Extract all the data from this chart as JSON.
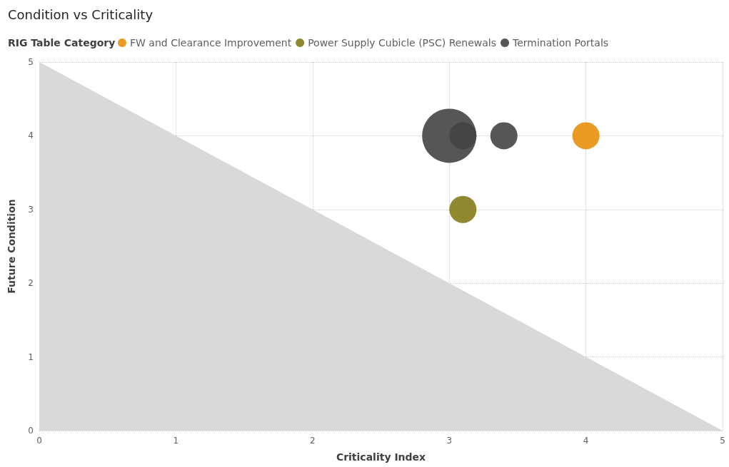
{
  "chart_data": {
    "type": "bubble",
    "title": "Condition vs Criticality",
    "xlabel": "Criticality Index",
    "ylabel": "Future Condition",
    "legend_title": "RIG Table Category",
    "xlim": [
      0,
      5
    ],
    "xticks": [
      0,
      1,
      2,
      3,
      4,
      5
    ],
    "ylim": [
      0,
      5
    ],
    "yticks": [
      0,
      1,
      2,
      3,
      4,
      5
    ],
    "grid": true,
    "legend": "top left",
    "series": [
      {
        "type": "area",
        "color": "#d9d9d9",
        "x": [
          0,
          5
        ],
        "values": [
          5,
          0
        ]
      },
      {
        "name": "FW and Clearance Improvement",
        "color": "#e8900c",
        "x": [
          4
        ],
        "values": [
          4
        ],
        "sizes": [
          0.25
        ]
      },
      {
        "name": "Power Supply Cubicle (PSC) Renewals",
        "color": "#857c1a",
        "x": [
          3.1
        ],
        "values": [
          3
        ],
        "sizes": [
          0.25
        ]
      },
      {
        "name": "Termination Portals",
        "color": "#444444",
        "x": [
          3,
          3.1,
          3.4
        ],
        "values": [
          4,
          4,
          4
        ],
        "sizes": [
          1,
          0.25,
          0.25
        ]
      }
    ]
  }
}
